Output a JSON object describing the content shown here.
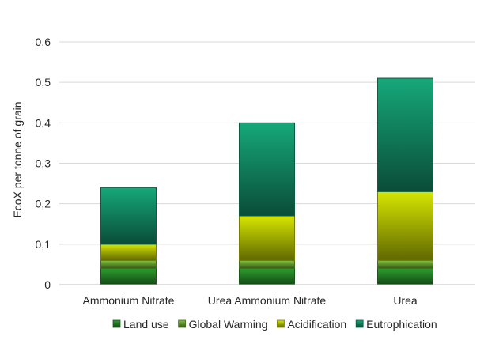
{
  "chart_data": {
    "type": "bar",
    "stacked": true,
    "title": "",
    "xlabel": "",
    "ylabel": "EcoX per tonne of grain",
    "ylim": [
      0,
      0.6
    ],
    "yticks": [
      "0",
      "0,1",
      "0,2",
      "0,3",
      "0,4",
      "0,5",
      "0,6"
    ],
    "grid": true,
    "legend_position": "bottom",
    "categories": [
      "Ammonium Nitrate",
      "Urea Ammonium Nitrate",
      "Urea"
    ],
    "series": [
      {
        "name": "Land use",
        "values": [
          0.04,
          0.04,
          0.04
        ],
        "color": "#2e9e2e"
      },
      {
        "name": "Global Warming",
        "values": [
          0.02,
          0.02,
          0.02
        ],
        "color": "#7cc43a"
      },
      {
        "name": "Acidification",
        "values": [
          0.04,
          0.11,
          0.17
        ],
        "color": "#d6e600"
      },
      {
        "name": "Eutrophication",
        "values": [
          0.14,
          0.23,
          0.28
        ],
        "color": "#16a87a"
      }
    ]
  }
}
